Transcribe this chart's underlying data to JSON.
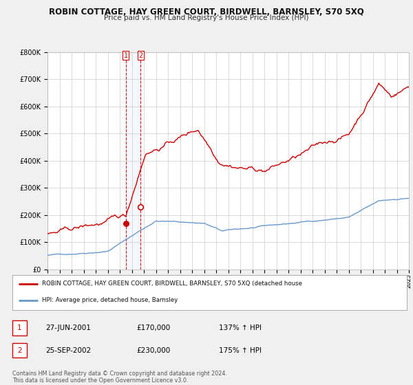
{
  "title": "ROBIN COTTAGE, HAY GREEN COURT, BIRDWELL, BARNSLEY, S70 5XQ",
  "subtitle": "Price paid vs. HM Land Registry's House Price Index (HPI)",
  "legend_line1": "ROBIN COTTAGE, HAY GREEN COURT, BIRDWELL, BARNSLEY, S70 5XQ (detached house",
  "legend_line2": "HPI: Average price, detached house, Barnsley",
  "sale1_date": "27-JUN-2001",
  "sale1_price": 170000,
  "sale1_label": "137% ↑ HPI",
  "sale2_date": "25-SEP-2002",
  "sale2_price": 230000,
  "sale2_label": "175% ↑ HPI",
  "footer1": "Contains HM Land Registry data © Crown copyright and database right 2024.",
  "footer2": "This data is licensed under the Open Government Licence v3.0.",
  "sale1_x": 2001.49,
  "sale2_x": 2002.73,
  "red_color": "#cc0000",
  "blue_color": "#6699cc",
  "background_color": "#f0f0f0",
  "plot_bg_color": "#ffffff",
  "grid_color": "#cccccc",
  "shade_color": "#ddeeff"
}
